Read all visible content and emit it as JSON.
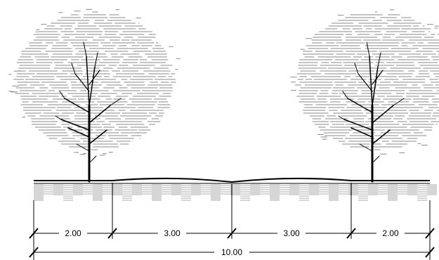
{
  "section": {
    "segments": [
      {
        "label": "2.00",
        "value": 2.0
      },
      {
        "label": "3.00",
        "value": 3.0
      },
      {
        "label": "3.00",
        "value": 3.0
      },
      {
        "label": "2.00",
        "value": 2.0
      }
    ],
    "total": {
      "label": "10.00",
      "value": 10.0
    }
  },
  "colors": {
    "line": "#000000",
    "canopy": "#8a8a8a",
    "hatch": "#9a9a9a",
    "background": "#ffffff"
  },
  "elements": {
    "trees": 2,
    "tree_icon": "deciduous-tree-icon"
  }
}
